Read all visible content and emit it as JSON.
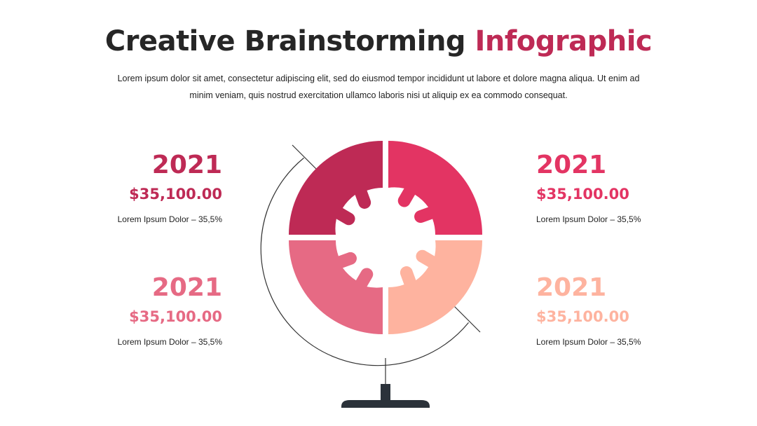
{
  "header": {
    "title_main": "Creative Brainstorming",
    "title_accent": "Infographic",
    "description": "Lorem ipsum dolor sit amet, consectetur adipiscing elit, sed do eiusmod tempor incididunt ut labore et dolore magna aliqua. Ut enim ad minim veniam, quis nostrud exercitation ullamco laboris nisi ut aliquip ex ea commodo consequat."
  },
  "colors": {
    "dark_text": "#262626",
    "accent": "#be2a55",
    "segment_top_left": "#be2a55",
    "segment_top_right": "#e33463",
    "segment_bottom_left": "#e66a84",
    "segment_bottom_right": "#feb39f",
    "stand": "#2b323a",
    "arc_line": "#333333"
  },
  "stats": [
    {
      "position": "top-left",
      "year": "2021",
      "amount": "$35,100.00",
      "label": "Lorem Ipsum Dolor – 35,5%",
      "color": "#be2a55"
    },
    {
      "position": "bottom-left",
      "year": "2021",
      "amount": "$35,100.00",
      "label": "Lorem Ipsum Dolor – 35,5%",
      "color": "#e66a84"
    },
    {
      "position": "top-right",
      "year": "2021",
      "amount": "$35,100.00",
      "label": "Lorem Ipsum Dolor – 35,5%",
      "color": "#e33463"
    },
    {
      "position": "bottom-right",
      "year": "2021",
      "amount": "$35,100.00",
      "label": "Lorem Ipsum Dolor – 35,5%",
      "color": "#feb39f"
    }
  ],
  "graphic": {
    "type": "globe-puzzle",
    "segments": 4,
    "icons": [
      "globe-icon",
      "globe-stand-icon"
    ]
  }
}
